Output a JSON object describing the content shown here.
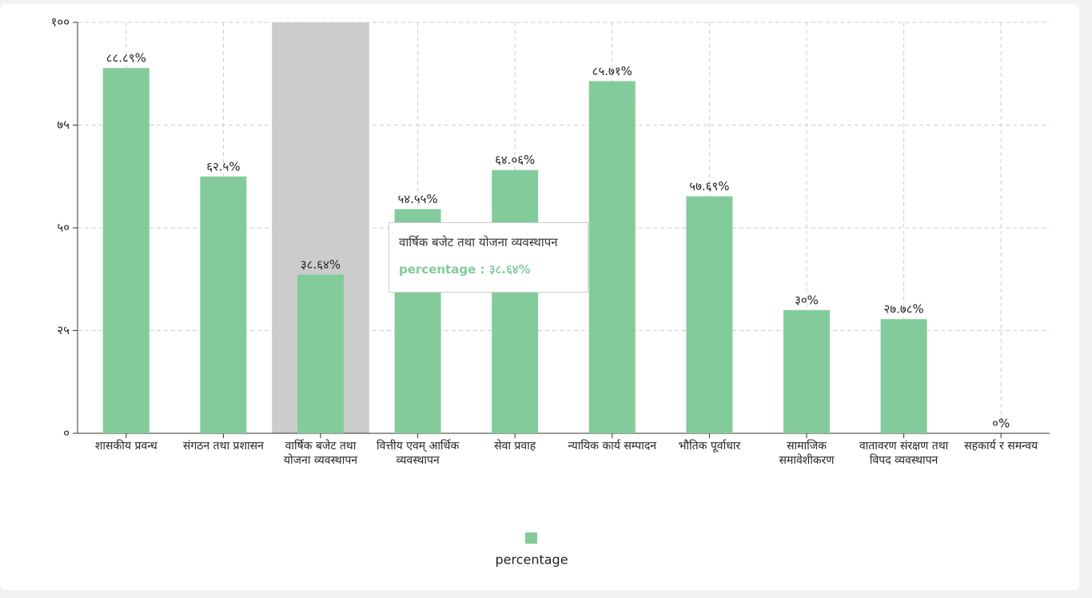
{
  "chart_data": {
    "type": "bar",
    "categories": [
      "शासकीय प्रवन्ध",
      "संगठन तथा प्रशासन",
      "वार्षिक बजेट तथा योजना व्यवस्थापन",
      "वित्तीय एवम् आर्थिक व्यवस्थापन",
      "सेवा प्रवाह",
      "न्यायिक कार्य सम्पादन",
      "भौतिक पूर्वाधार",
      "सामाजिक समावेशीकरण",
      "वातावरण संरक्षण तथा विपद व्यवस्थापन",
      "सहकार्य र समन्वय"
    ],
    "series": [
      {
        "name": "percentage",
        "color": "#84cb9c",
        "values": [
          88.89,
          62.5,
          38.64,
          54.55,
          64.06,
          85.71,
          57.69,
          30,
          27.78,
          0
        ],
        "value_labels": [
          "८८.८९%",
          "६२.५%",
          "३८.६४%",
          "५४.५५%",
          "६४.०६%",
          "८५.७१%",
          "५७.६९%",
          "३०%",
          "२७.७८%",
          "०%"
        ]
      }
    ],
    "ylim": [
      0,
      100
    ],
    "yticks": [
      {
        "value": 0,
        "label": "०"
      },
      {
        "value": 25,
        "label": "२५"
      },
      {
        "value": 50,
        "label": "५०"
      },
      {
        "value": 75,
        "label": "७५"
      },
      {
        "value": 100,
        "label": "१००"
      }
    ],
    "grid": true,
    "legend": "bottom",
    "tooltip": {
      "title": "वार्षिक बजेट तथा योजना व्यवस्थापन",
      "text": "percentage : ३८.६४%"
    }
  }
}
